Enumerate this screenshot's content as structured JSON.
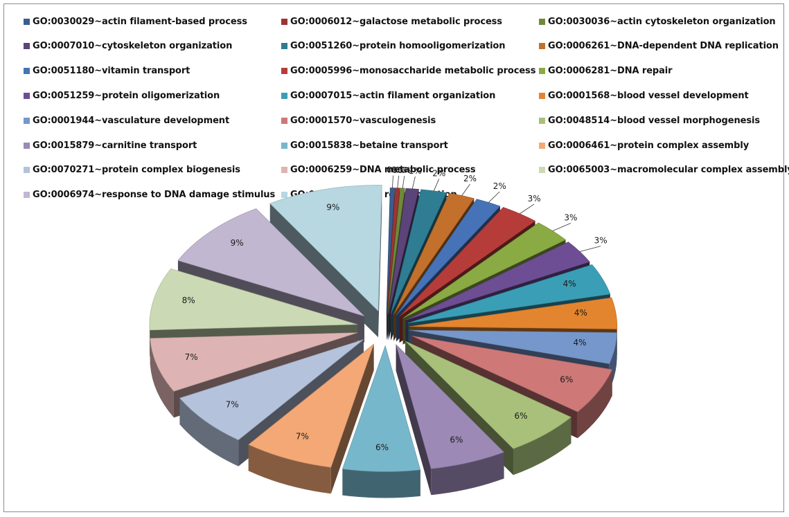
{
  "chart_data": {
    "type": "pie",
    "title": "",
    "exploded": true,
    "three_d": true,
    "legend_position": "top",
    "data_labels_format": "percent",
    "slices": [
      {
        "label": "GO:0030029~actin filament-based process",
        "percent": 0,
        "color": "#3a5d8f"
      },
      {
        "label": "GO:0006012~galactose metabolic process",
        "percent": 0,
        "color": "#9b3533"
      },
      {
        "label": "GO:0030036~actin cytoskeleton organization",
        "percent": 0,
        "color": "#6f8a3a"
      },
      {
        "label": "GO:0007010~cytoskeleton organization",
        "percent": 1,
        "color": "#5b447a"
      },
      {
        "label": "GO:0051260~protein homooligomerization",
        "percent": 2,
        "color": "#2f7d93"
      },
      {
        "label": "GO:0006261~DNA-dependent DNA replication",
        "percent": 2,
        "color": "#c2702b"
      },
      {
        "label": "GO:0051180~vitamin transport",
        "percent": 2,
        "color": "#4673b8"
      },
      {
        "label": "GO:0005996~monosaccharide metabolic process",
        "percent": 3,
        "color": "#b63c3a"
      },
      {
        "label": "GO:0006281~DNA repair",
        "percent": 3,
        "color": "#8aaa44"
      },
      {
        "label": "GO:0051259~protein oligomerization",
        "percent": 3,
        "color": "#6d4e94"
      },
      {
        "label": "GO:0007015~actin filament organization",
        "percent": 4,
        "color": "#3a9eb6"
      },
      {
        "label": "GO:0001568~blood vessel development",
        "percent": 4,
        "color": "#e3852f"
      },
      {
        "label": "GO:0001944~vasculature development",
        "percent": 4,
        "color": "#7697cb"
      },
      {
        "label": "GO:0001570~vasculogenesis",
        "percent": 6,
        "color": "#ce7878"
      },
      {
        "label": "GO:0048514~blood vessel morphogenesis",
        "percent": 6,
        "color": "#a8c07a"
      },
      {
        "label": "GO:0015879~carnitine transport",
        "percent": 6,
        "color": "#9c89b6"
      },
      {
        "label": "GO:0015838~betaine transport",
        "percent": 6,
        "color": "#77b7cb"
      },
      {
        "label": "GO:0006461~protein complex assembly",
        "percent": 7,
        "color": "#f3a876"
      },
      {
        "label": "GO:0070271~protein complex biogenesis",
        "percent": 7,
        "color": "#b4c2dc"
      },
      {
        "label": "GO:0006259~DNA metabolic process",
        "percent": 7,
        "color": "#ddb4b3"
      },
      {
        "label": "GO:0065003~macromolecular complex assembly",
        "percent": 8,
        "color": "#cbdab4"
      },
      {
        "label": "GO:0006974~response to DNA damage stimulus",
        "percent": 9,
        "color": "#c2b7d1"
      },
      {
        "label": "GO:0006310~DNA recombination",
        "percent": 9,
        "color": "#b7d7e1"
      }
    ]
  }
}
